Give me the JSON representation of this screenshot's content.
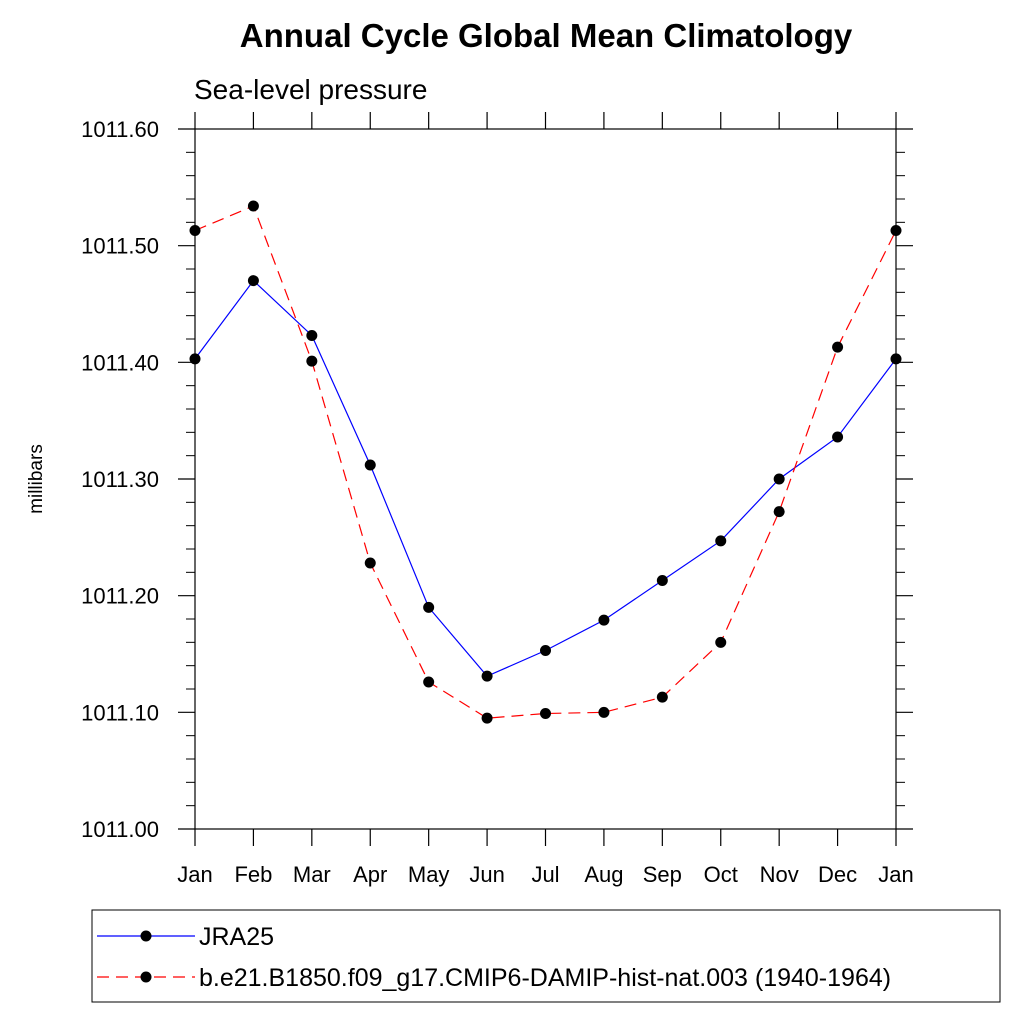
{
  "chart_data": {
    "type": "line",
    "title": "Annual Cycle Global Mean Climatology",
    "subtitle": "Sea-level pressure",
    "ylabel": "millibars",
    "xlabel": "",
    "categories": [
      "Jan",
      "Feb",
      "Mar",
      "Apr",
      "May",
      "Jun",
      "Jul",
      "Aug",
      "Sep",
      "Oct",
      "Nov",
      "Dec",
      "Jan"
    ],
    "ylim": [
      1011.0,
      1011.6
    ],
    "yticks": [
      "1011.00",
      "1011.10",
      "1011.20",
      "1011.30",
      "1011.40",
      "1011.50",
      "1011.60"
    ],
    "grid": false,
    "legend_position": "bottom",
    "series": [
      {
        "name": "JRA25",
        "color": "#0000ff",
        "dash": "solid",
        "marker": "filled-circle",
        "values": [
          1011.403,
          1011.47,
          1011.423,
          1011.312,
          1011.19,
          1011.131,
          1011.153,
          1011.179,
          1011.213,
          1011.247,
          1011.3,
          1011.336,
          1011.403
        ]
      },
      {
        "name": "b.e21.B1850.f09_g17.CMIP6-DAMIP-hist-nat.003 (1940-1964)",
        "color": "#ff0000",
        "dash": "dashed",
        "marker": "filled-circle",
        "values": [
          1011.513,
          1011.534,
          1011.401,
          1011.228,
          1011.126,
          1011.095,
          1011.099,
          1011.1,
          1011.113,
          1011.16,
          1011.272,
          1011.413,
          1011.513
        ]
      }
    ]
  }
}
